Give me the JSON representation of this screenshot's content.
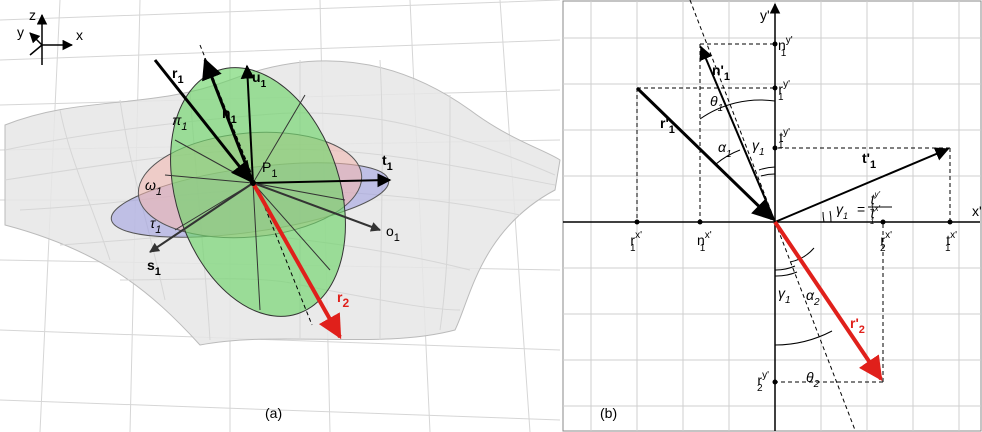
{
  "panel_a": {
    "caption": "(a)",
    "axes": {
      "z": "z",
      "y": "y",
      "x": "x"
    },
    "labels": {
      "r1": {
        "base": "r",
        "sub": "1"
      },
      "n1": {
        "base": "n",
        "sub": "1"
      },
      "u1": {
        "base": "u",
        "sub": "1"
      },
      "pi1": {
        "base": "π",
        "sub": "1"
      },
      "P1": {
        "base": "P",
        "sub": "1"
      },
      "t1": {
        "base": "t",
        "sub": "1"
      },
      "omega1": {
        "base": "ω",
        "sub": "1"
      },
      "tau1": {
        "base": "τ",
        "sub": "1"
      },
      "o1": {
        "base": "o",
        "sub": "1"
      },
      "s1": {
        "base": "s",
        "sub": "1"
      },
      "r2": {
        "base": "r",
        "sub": "2"
      }
    }
  },
  "panel_b": {
    "caption": "(b)",
    "axis_y": "y'",
    "axis_x": "x'",
    "vectors": {
      "n1": {
        "base": "n'",
        "sub": "1"
      },
      "r1": {
        "base": "r'",
        "sub": "1"
      },
      "t1": {
        "base": "t'",
        "sub": "1"
      },
      "r2": {
        "base": "r'",
        "sub": "2"
      }
    },
    "components": {
      "n1y": {
        "base": "n",
        "sub": "1",
        "sup": "y'"
      },
      "r1y": {
        "base": "r",
        "sub": "1",
        "sup": "y'"
      },
      "t1y": {
        "base": "t",
        "sub": "1",
        "sup": "y'"
      },
      "r2y": {
        "base": "r",
        "sub": "2",
        "sup": "y'"
      },
      "r1x": {
        "base": "r",
        "sub": "1",
        "sup": "x'"
      },
      "n1x": {
        "base": "n",
        "sub": "1",
        "sup": "x'"
      },
      "r2x": {
        "base": "r",
        "sub": "2",
        "sup": "x'"
      },
      "t1x": {
        "base": "t",
        "sub": "1",
        "sup": "x'"
      }
    },
    "angles": {
      "theta1": {
        "base": "θ",
        "sub": "1"
      },
      "alpha1": {
        "base": "α",
        "sub": "1"
      },
      "gamma1_top": {
        "base": "γ",
        "sub": "1"
      },
      "gamma1_bottom": {
        "base": "γ",
        "sub": "1"
      },
      "alpha2": {
        "base": "α",
        "sub": "2"
      },
      "theta2": {
        "base": "θ",
        "sub": "2"
      }
    },
    "formula": {
      "lhs": {
        "base": "γ",
        "sub": "1"
      },
      "eq": "=",
      "num": {
        "base": "t",
        "sub": "1",
        "sup": "y'"
      },
      "den": {
        "base": "t",
        "sub": "1",
        "sup": "x'"
      }
    }
  }
}
